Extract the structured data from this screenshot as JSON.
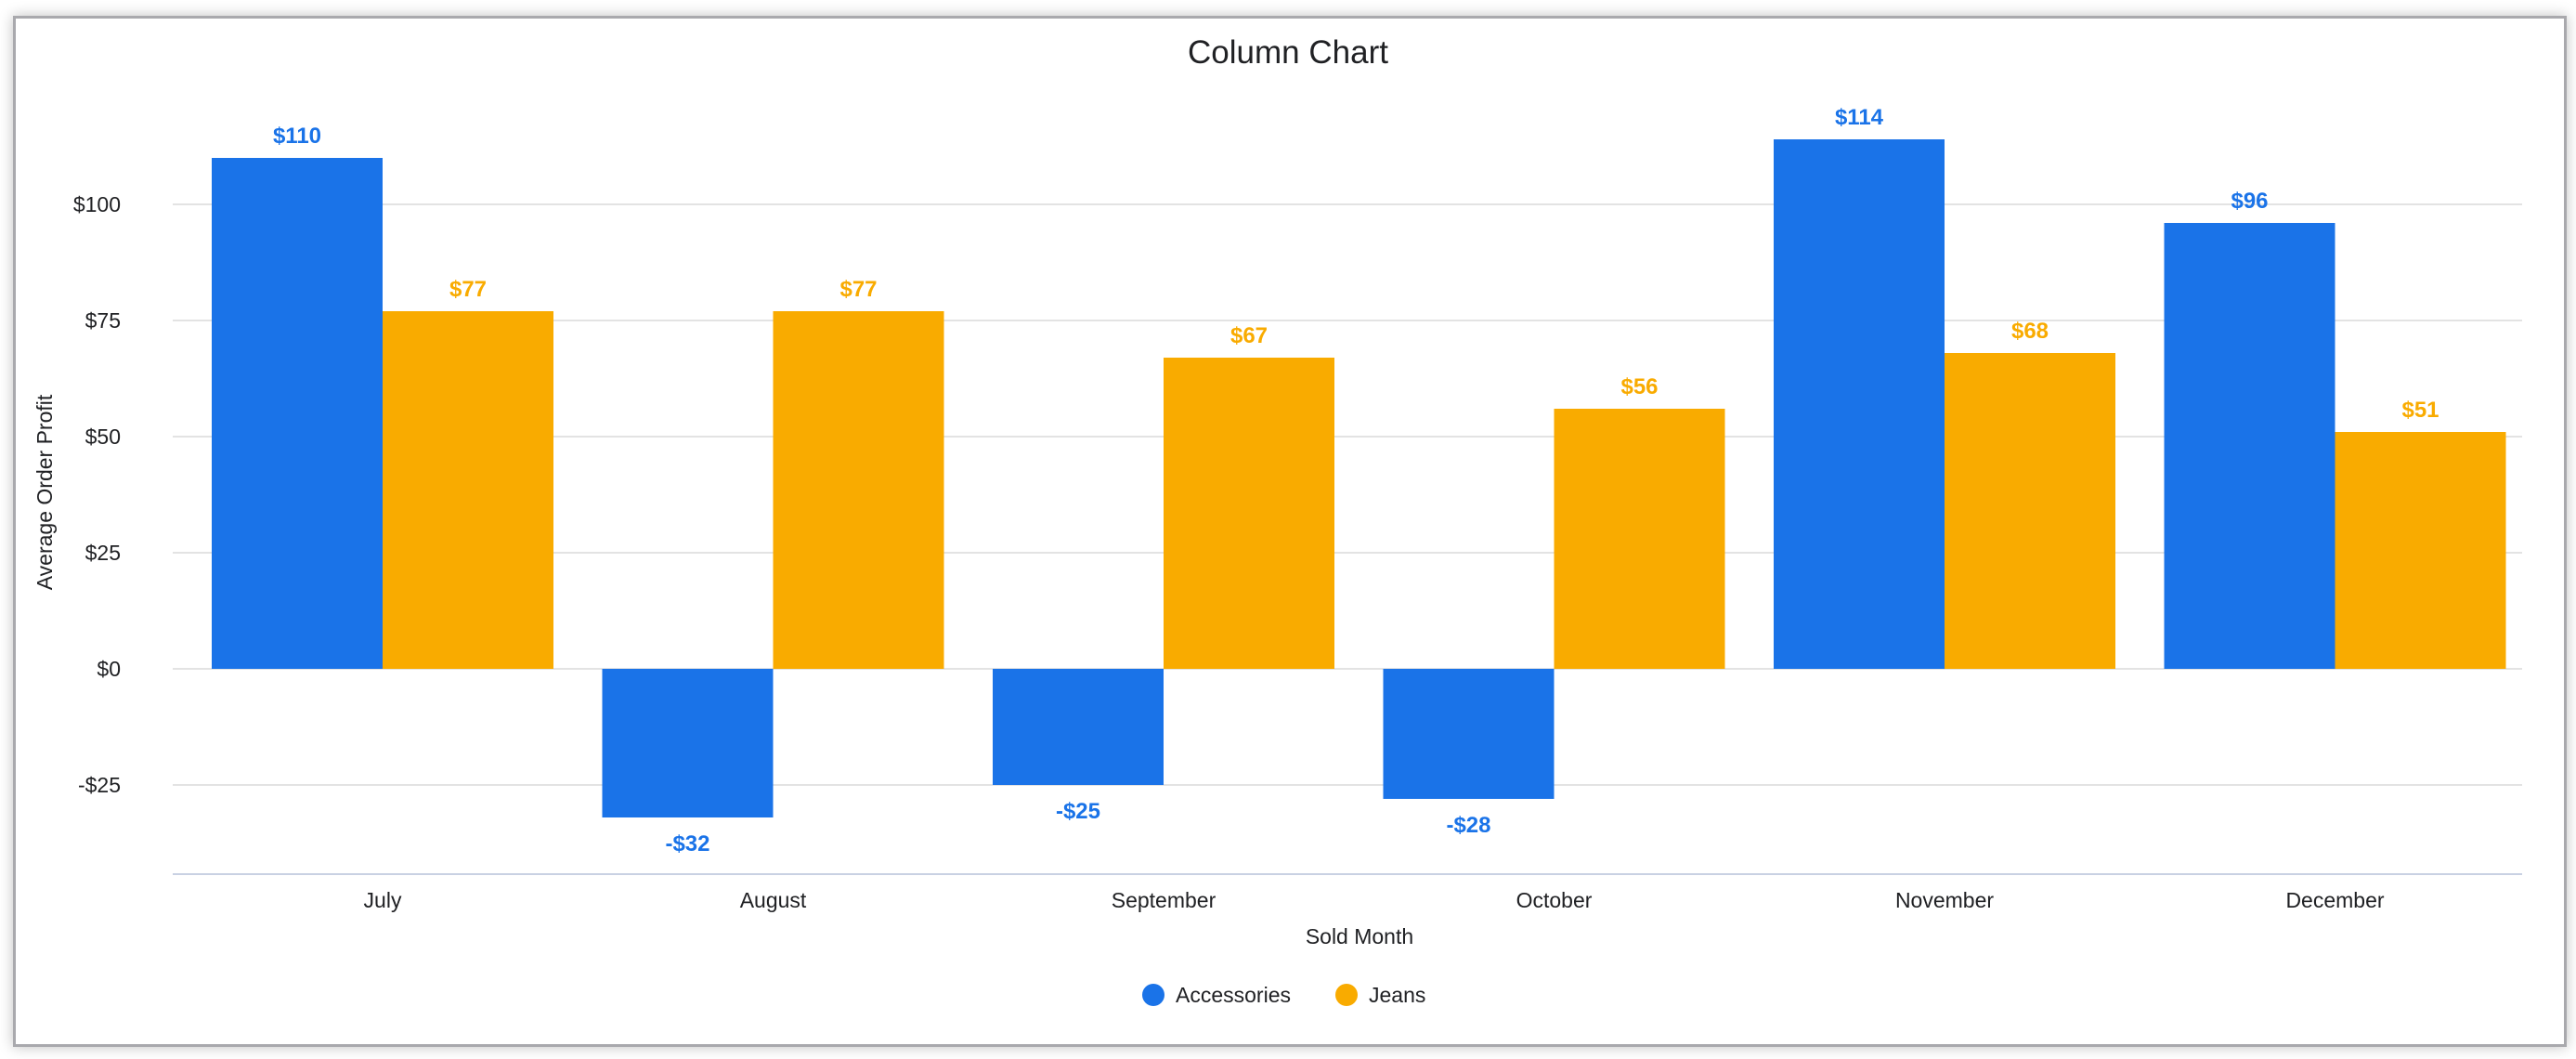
{
  "chart_data": {
    "type": "bar",
    "title": "Column Chart",
    "xlabel": "Sold Month",
    "ylabel": "Average Order Profit",
    "categories": [
      "July",
      "August",
      "September",
      "October",
      "November",
      "December"
    ],
    "series": [
      {
        "name": "Accessories",
        "color": "#1a73e8",
        "values": [
          110,
          -32,
          -25,
          -28,
          114,
          96
        ],
        "labels": [
          "$110",
          "-$32",
          "-$25",
          "-$28",
          "$114",
          "$96"
        ]
      },
      {
        "name": "Jeans",
        "color": "#f9ab00",
        "values": [
          77,
          77,
          67,
          56,
          68,
          51
        ],
        "labels": [
          "$77",
          "$77",
          "$67",
          "$56",
          "$68",
          "$51"
        ]
      }
    ],
    "yticks": [
      -25,
      0,
      25,
      50,
      75,
      100
    ],
    "ytick_labels": [
      "-$25",
      "$0",
      "$25",
      "$50",
      "$75",
      "$100"
    ],
    "ylim": [
      -44,
      123
    ],
    "grid": true,
    "legend": "bottom"
  }
}
